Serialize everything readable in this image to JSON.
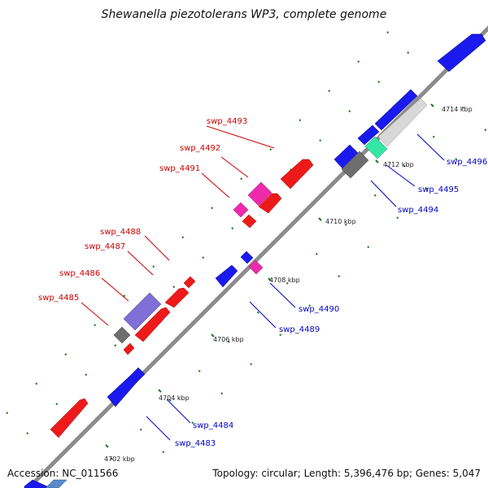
{
  "title": "Shewanella piezotolerans WP3, complete genome",
  "accession": "Accession: NC_011566",
  "footer": "Topology: circular; Length: 5,396,476 bp; Genes: 5,047",
  "colors": {
    "backbone": "#8c8c8c",
    "label_red": "#cc0000",
    "label_blue": "#0000cc",
    "dots": "#1f7a1f"
  },
  "ticks": [
    {
      "label": "4702 kbp"
    },
    {
      "label": "4704 kbp"
    },
    {
      "label": "4706 kbp"
    },
    {
      "label": "4708 kbp"
    },
    {
      "label": "4710 kbp"
    },
    {
      "label": "4712 kbp"
    },
    {
      "label": "4714 kbp"
    }
  ],
  "genes": [
    {
      "label": "swp_4483",
      "color": "#1a1aee"
    },
    {
      "label": "swp_4484",
      "color": "#1a1aee"
    },
    {
      "label": "swp_4485",
      "color": "#6e6e6e"
    },
    {
      "label": "swp_4486",
      "color": "#ee1a1a"
    },
    {
      "label": "swp_4487",
      "color": "#7f6fd6"
    },
    {
      "label": "swp_4488",
      "color": "#ee1a1a"
    },
    {
      "label": "swp_4489",
      "color": "#1a1aee"
    },
    {
      "label": "swp_4490",
      "color": "#1a1aee"
    },
    {
      "label": "swp_4491",
      "color": "#ee2aaa"
    },
    {
      "label": "swp_4492",
      "color": "#ee1a1a"
    },
    {
      "label": "swp_4493",
      "color": "#ee1a1a"
    },
    {
      "label": "swp_4494",
      "color": "#6e6e6e"
    },
    {
      "label": "swp_4495",
      "color": "#33e6a4"
    },
    {
      "label": "swp_4496",
      "color": "#1a1aee"
    }
  ]
}
